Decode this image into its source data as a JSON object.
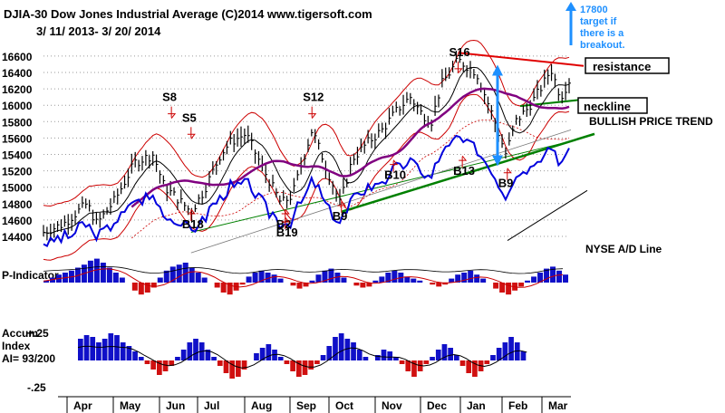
{
  "header": {
    "line1": "DJIA-30  Dow Jones Industrial Average   (C)2014 www.tigersoft.com",
    "line2": "3/ 11/ 2013-  3/ 20/ 2014"
  },
  "colors": {
    "price": "#000000",
    "ma50": "#800080",
    "band": "#cc0000",
    "trend": "#008000",
    "resistance": "#e00000",
    "ad": "#0000dd",
    "arrow": "#1e90ff",
    "accum_pos": "#1010c8",
    "accum_neg": "#d01010"
  },
  "chart_data": [
    {
      "type": "line",
      "title": "DJIA-30  Dow Jones Industrial Average",
      "ylim": [
        14200,
        16900
      ],
      "y_ticks": [
        14400,
        14600,
        14800,
        15000,
        15200,
        15400,
        15600,
        15800,
        16000,
        16200,
        16400,
        16600
      ],
      "x_categories": [
        "Apr",
        "May",
        "Jun",
        "Jul",
        "Aug",
        "Sep",
        "Oct",
        "Nov",
        "Dec",
        "Jan",
        "Feb",
        "Mar"
      ],
      "series": [
        {
          "name": "DJIA",
          "x": [
            "2013-03-11",
            "2013-03-25",
            "2013-04-11",
            "2013-04-18",
            "2013-05-01",
            "2013-05-15",
            "2013-05-28",
            "2013-06-05",
            "2013-06-12",
            "2013-06-24",
            "2013-07-03",
            "2013-07-15",
            "2013-07-22",
            "2013-08-02",
            "2013-08-15",
            "2013-08-27",
            "2013-09-04",
            "2013-09-11",
            "2013-09-18",
            "2013-09-27",
            "2013-10-08",
            "2013-10-17",
            "2013-10-28",
            "2013-11-07",
            "2013-11-18",
            "2013-11-27",
            "2013-12-05",
            "2013-12-12",
            "2013-12-19",
            "2013-12-31",
            "2014-01-13",
            "2014-01-24",
            "2014-02-03",
            "2014-02-10",
            "2014-02-18",
            "2014-02-24",
            "2014-03-03",
            "2014-03-07",
            "2014-03-14",
            "2014-03-20"
          ],
          "values": [
            14450,
            14550,
            14800,
            14550,
            14850,
            15300,
            15400,
            15000,
            14900,
            14700,
            14950,
            15400,
            15550,
            15650,
            15200,
            14800,
            14900,
            15300,
            15700,
            15300,
            14800,
            15350,
            15550,
            15700,
            15950,
            16100,
            15900,
            15800,
            16250,
            16550,
            16400,
            15900,
            15400,
            15800,
            15950,
            16100,
            16300,
            16450,
            16100,
            16300
          ]
        }
      ],
      "signals": [
        {
          "label": "S8",
          "date": "2013-06-10",
          "value": 16050
        },
        {
          "label": "S5",
          "date": "2013-06-24",
          "value": 15800
        },
        {
          "label": "S12",
          "date": "2013-09-18",
          "value": 16050
        },
        {
          "label": "S16",
          "date": "2013-12-31",
          "value": 16600
        },
        {
          "label": "B18",
          "date": "2013-06-24",
          "value": 14500
        },
        {
          "label": "B2",
          "date": "2013-08-30",
          "value": 14500
        },
        {
          "label": "B19",
          "date": "2013-08-30",
          "value": 14400
        },
        {
          "label": "B9",
          "date": "2013-10-09",
          "value": 14600
        },
        {
          "label": "B10",
          "date": "2013-11-15",
          "value": 15100
        },
        {
          "label": "B13",
          "date": "2014-01-03",
          "value": 15150
        },
        {
          "label": "B9",
          "date": "2014-02-04",
          "value": 15000
        }
      ],
      "annotations": {
        "target": "17800\ntarget if\nthere is a\nbreakout.",
        "resistance": "resistance",
        "neckline": "neckline",
        "trend": "BULLISH PRICE TREND",
        "ad_label": "NYSE A/D Line"
      }
    },
    {
      "type": "bar",
      "title": "P-Indicator",
      "note": "oscillator histogram with moving average",
      "values": [
        2,
        5,
        8,
        10,
        12,
        15,
        18,
        22,
        24,
        20,
        15,
        10,
        5,
        0,
        -8,
        -12,
        -10,
        -5,
        5,
        12,
        16,
        18,
        20,
        15,
        10,
        5,
        0,
        -5,
        -10,
        -12,
        -8,
        -2,
        6,
        10,
        12,
        10,
        8,
        4,
        0,
        -3,
        -6,
        -4,
        2,
        8,
        12,
        14,
        10,
        5,
        0,
        -3,
        -5,
        -4,
        2,
        6,
        10,
        12,
        10,
        6,
        4,
        2,
        0,
        -2,
        -4,
        -2,
        4,
        8,
        10,
        12,
        8,
        4,
        0,
        -6,
        -10,
        -12,
        -8,
        -4,
        2,
        6,
        10,
        14,
        16,
        12,
        8
      ]
    },
    {
      "type": "bar",
      "title": "Accum Index",
      "subtitle": "AI= 93/200",
      "y_ticks": [
        "+.25",
        "-.25"
      ],
      "values": [
        0.12,
        0.14,
        0.13,
        0.1,
        0.12,
        0.15,
        0.14,
        0.1,
        0.08,
        0.05,
        0.02,
        -0.02,
        -0.05,
        -0.08,
        -0.06,
        -0.03,
        0.02,
        0.06,
        0.1,
        0.12,
        0.1,
        0.06,
        0.02,
        -0.03,
        -0.07,
        -0.1,
        -0.09,
        -0.05,
        0.0,
        0.04,
        0.07,
        0.09,
        0.06,
        0.02,
        -0.02,
        -0.06,
        -0.09,
        -0.08,
        -0.05,
        -0.02,
        0.03,
        0.08,
        0.13,
        0.15,
        0.12,
        0.1,
        0.06,
        0.02,
        0.0,
        0.03,
        0.06,
        0.05,
        0.02,
        -0.02,
        -0.06,
        -0.09,
        -0.06,
        -0.02,
        0.02,
        0.06,
        0.09,
        0.07,
        0.03,
        -0.03,
        -0.07,
        -0.09,
        -0.06,
        -0.02,
        0.03,
        0.07,
        0.1,
        0.13,
        0.1,
        0.05,
        0.0
      ]
    }
  ]
}
